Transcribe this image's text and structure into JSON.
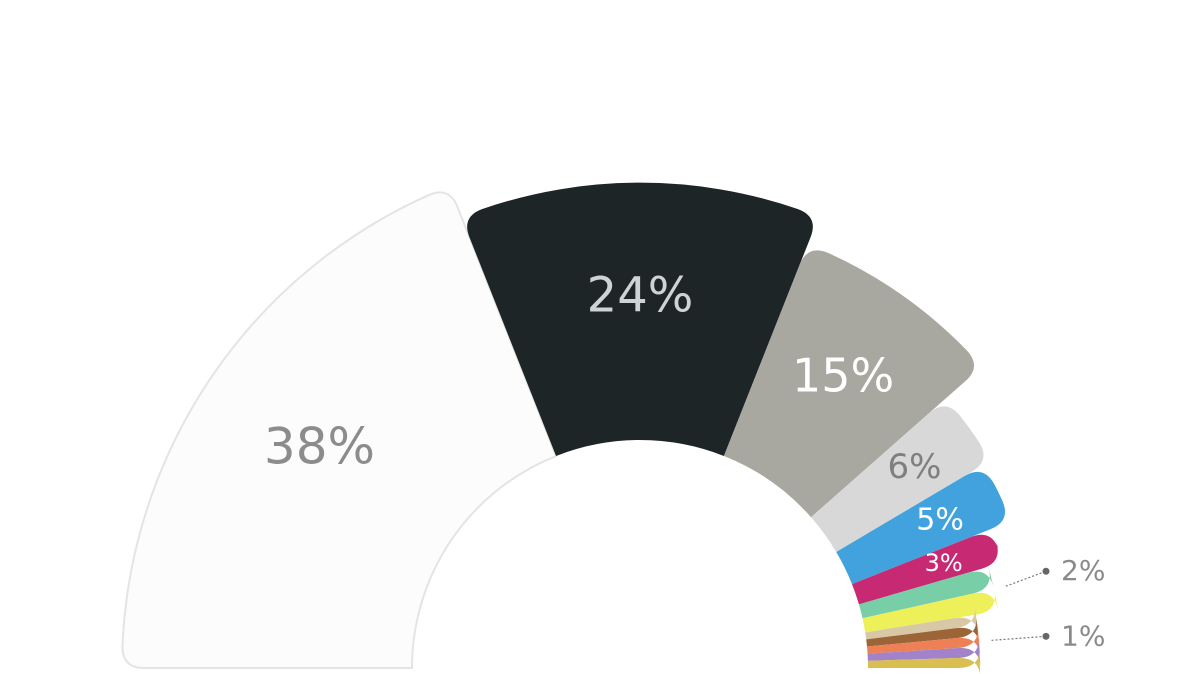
{
  "chart_data": {
    "type": "pie",
    "variant": "half-donut, radius varies by value",
    "title": "",
    "slices": [
      {
        "value": 38,
        "label": "38%",
        "color": "#fcfcfc",
        "label_color": "#8c8c8c",
        "outlined": true
      },
      {
        "value": 24,
        "label": "24%",
        "color": "#1e2526",
        "label_color": "#cfd3d4"
      },
      {
        "value": 15,
        "label": "15%",
        "color": "#a8a7a0",
        "label_color": "#ffffff"
      },
      {
        "value": 6,
        "label": "6%",
        "color": "#d8d8d8",
        "label_color": "#7f7f7f"
      },
      {
        "value": 5,
        "label": "5%",
        "color": "#41a2dd",
        "label_color": "#ffffff"
      },
      {
        "value": 3,
        "label": "3%",
        "color": "#c72a73",
        "label_color": "#ffffff"
      },
      {
        "value": 2,
        "label": "",
        "color": "#77cea7"
      },
      {
        "value": 2,
        "label": "",
        "color": "#eef05a"
      },
      {
        "value": 1,
        "label": "",
        "color": "#d8c8a6"
      },
      {
        "value": 1,
        "label": "",
        "color": "#9c6538"
      },
      {
        "value": 1,
        "label": "",
        "color": "#ee8055"
      },
      {
        "value": 1,
        "label": "",
        "color": "#a283c9"
      },
      {
        "value": 1,
        "label": "",
        "color": "#d8bf50"
      }
    ],
    "callouts": [
      {
        "text": "2%",
        "slices": [
          6,
          7
        ]
      },
      {
        "text": "1%",
        "slices": [
          8,
          9,
          10,
          11,
          12
        ]
      }
    ]
  }
}
